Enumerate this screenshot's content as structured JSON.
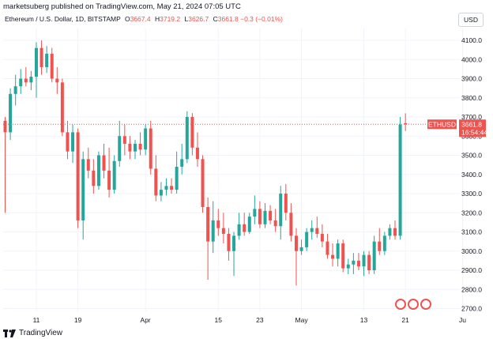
{
  "header": {
    "publisher_line": "marketsuberg published on TradingView.com, May 21, 2024 07:05 UTC",
    "symbol": "Ethereum / U.S. Dollar, 1D, BITSTAMP",
    "ohlc": {
      "o_label": "O",
      "o_value": "3667.4",
      "h_label": "H",
      "h_value": "3719.2",
      "l_label": "L",
      "l_value": "3626.7",
      "c_label": "C",
      "c_value": "3661.8",
      "change": "−0.3 (−0.01%)"
    },
    "currency_button": "USD"
  },
  "footer": {
    "brand": "TradingView"
  },
  "colors": {
    "up": "#26a69a",
    "down": "#ef5350",
    "last_line": "#ef5350",
    "grid": "#f0f3fa"
  },
  "price_label": {
    "symbol": "ETHUSD",
    "price": "3661.8",
    "countdown": "16:54:44"
  },
  "chart_data": {
    "type": "candlestick",
    "title": "Ethereum / U.S. Dollar, 1D, BITSTAMP",
    "ylim": [
      2650,
      4200
    ],
    "y_ticks": [
      "4100.0",
      "4000.0",
      "3900.0",
      "3800.0",
      "3700.0",
      "3600.0",
      "3500.0",
      "3400.0",
      "3300.0",
      "3200.0",
      "3100.0",
      "3000.0",
      "2900.0",
      "2800.0",
      "2700.0"
    ],
    "x_ticks": [
      {
        "label": "11",
        "index": 6
      },
      {
        "label": "19",
        "index": 14
      },
      {
        "label": "Apr",
        "index": 27
      },
      {
        "label": "15",
        "index": 41
      },
      {
        "label": "23",
        "index": 49
      },
      {
        "label": "May",
        "index": 57
      },
      {
        "label": "13",
        "index": 69
      },
      {
        "label": "21",
        "index": 77
      },
      {
        "label": "Ju",
        "index": 88
      }
    ],
    "last_price": 3661.8,
    "candles": [
      {
        "o": 3680,
        "h": 3700,
        "l": 3200,
        "c": 3620
      },
      {
        "o": 3620,
        "h": 3850,
        "l": 3580,
        "c": 3820
      },
      {
        "o": 3820,
        "h": 3920,
        "l": 3760,
        "c": 3860
      },
      {
        "o": 3860,
        "h": 3950,
        "l": 3820,
        "c": 3900
      },
      {
        "o": 3900,
        "h": 3960,
        "l": 3860,
        "c": 3880
      },
      {
        "o": 3880,
        "h": 3940,
        "l": 3840,
        "c": 3910
      },
      {
        "o": 3910,
        "h": 4090,
        "l": 3800,
        "c": 4060
      },
      {
        "o": 4060,
        "h": 4100,
        "l": 3920,
        "c": 3960
      },
      {
        "o": 3960,
        "h": 4070,
        "l": 3930,
        "c": 4030
      },
      {
        "o": 4030,
        "h": 4060,
        "l": 3880,
        "c": 3900
      },
      {
        "o": 3900,
        "h": 3960,
        "l": 3820,
        "c": 3880
      },
      {
        "o": 3880,
        "h": 3900,
        "l": 3600,
        "c": 3620
      },
      {
        "o": 3620,
        "h": 3680,
        "l": 3480,
        "c": 3520
      },
      {
        "o": 3520,
        "h": 3660,
        "l": 3460,
        "c": 3620
      },
      {
        "o": 3620,
        "h": 3640,
        "l": 3120,
        "c": 3160
      },
      {
        "o": 3160,
        "h": 3520,
        "l": 3060,
        "c": 3480
      },
      {
        "o": 3480,
        "h": 3540,
        "l": 3380,
        "c": 3420
      },
      {
        "o": 3420,
        "h": 3480,
        "l": 3300,
        "c": 3340
      },
      {
        "o": 3340,
        "h": 3520,
        "l": 3320,
        "c": 3500
      },
      {
        "o": 3500,
        "h": 3560,
        "l": 3380,
        "c": 3420
      },
      {
        "o": 3420,
        "h": 3540,
        "l": 3280,
        "c": 3320
      },
      {
        "o": 3320,
        "h": 3500,
        "l": 3300,
        "c": 3470
      },
      {
        "o": 3470,
        "h": 3680,
        "l": 3440,
        "c": 3600
      },
      {
        "o": 3600,
        "h": 3660,
        "l": 3500,
        "c": 3560
      },
      {
        "o": 3560,
        "h": 3600,
        "l": 3480,
        "c": 3520
      },
      {
        "o": 3520,
        "h": 3580,
        "l": 3480,
        "c": 3560
      },
      {
        "o": 3560,
        "h": 3620,
        "l": 3500,
        "c": 3530
      },
      {
        "o": 3530,
        "h": 3660,
        "l": 3500,
        "c": 3640
      },
      {
        "o": 3640,
        "h": 3680,
        "l": 3400,
        "c": 3430
      },
      {
        "o": 3430,
        "h": 3500,
        "l": 3260,
        "c": 3290
      },
      {
        "o": 3290,
        "h": 3360,
        "l": 3260,
        "c": 3320
      },
      {
        "o": 3320,
        "h": 3380,
        "l": 3290,
        "c": 3340
      },
      {
        "o": 3340,
        "h": 3380,
        "l": 3300,
        "c": 3320
      },
      {
        "o": 3320,
        "h": 3520,
        "l": 3300,
        "c": 3440
      },
      {
        "o": 3440,
        "h": 3560,
        "l": 3400,
        "c": 3480
      },
      {
        "o": 3480,
        "h": 3730,
        "l": 3460,
        "c": 3700
      },
      {
        "o": 3700,
        "h": 3720,
        "l": 3500,
        "c": 3540
      },
      {
        "o": 3540,
        "h": 3620,
        "l": 3440,
        "c": 3480
      },
      {
        "o": 3480,
        "h": 3500,
        "l": 3200,
        "c": 3230
      },
      {
        "o": 3230,
        "h": 3280,
        "l": 2850,
        "c": 3050
      },
      {
        "o": 3050,
        "h": 3260,
        "l": 2990,
        "c": 3160
      },
      {
        "o": 3160,
        "h": 3220,
        "l": 3080,
        "c": 3120
      },
      {
        "o": 3120,
        "h": 3200,
        "l": 3040,
        "c": 3090
      },
      {
        "o": 3090,
        "h": 3120,
        "l": 2950,
        "c": 3000
      },
      {
        "o": 3000,
        "h": 3100,
        "l": 2870,
        "c": 3080
      },
      {
        "o": 3080,
        "h": 3200,
        "l": 3060,
        "c": 3140
      },
      {
        "o": 3140,
        "h": 3200,
        "l": 3080,
        "c": 3100
      },
      {
        "o": 3100,
        "h": 3200,
        "l": 3090,
        "c": 3180
      },
      {
        "o": 3180,
        "h": 3290,
        "l": 3140,
        "c": 3220
      },
      {
        "o": 3220,
        "h": 3260,
        "l": 3120,
        "c": 3140
      },
      {
        "o": 3140,
        "h": 3250,
        "l": 3120,
        "c": 3210
      },
      {
        "o": 3210,
        "h": 3240,
        "l": 3140,
        "c": 3160
      },
      {
        "o": 3160,
        "h": 3220,
        "l": 3100,
        "c": 3130
      },
      {
        "o": 3130,
        "h": 3340,
        "l": 3060,
        "c": 3300
      },
      {
        "o": 3300,
        "h": 3350,
        "l": 3160,
        "c": 3200
      },
      {
        "o": 3200,
        "h": 3250,
        "l": 3050,
        "c": 3080
      },
      {
        "o": 3080,
        "h": 3120,
        "l": 2820,
        "c": 3000
      },
      {
        "o": 3000,
        "h": 3060,
        "l": 2980,
        "c": 3020
      },
      {
        "o": 3020,
        "h": 3120,
        "l": 3000,
        "c": 3100
      },
      {
        "o": 3100,
        "h": 3160,
        "l": 3060,
        "c": 3120
      },
      {
        "o": 3120,
        "h": 3180,
        "l": 3070,
        "c": 3090
      },
      {
        "o": 3090,
        "h": 3140,
        "l": 3020,
        "c": 3050
      },
      {
        "o": 3050,
        "h": 3090,
        "l": 2960,
        "c": 2980
      },
      {
        "o": 2980,
        "h": 3040,
        "l": 2920,
        "c": 2960
      },
      {
        "o": 2960,
        "h": 3060,
        "l": 2920,
        "c": 3040
      },
      {
        "o": 3040,
        "h": 3060,
        "l": 2890,
        "c": 2910
      },
      {
        "o": 2910,
        "h": 2960,
        "l": 2880,
        "c": 2930
      },
      {
        "o": 2930,
        "h": 2990,
        "l": 2880,
        "c": 2950
      },
      {
        "o": 2950,
        "h": 2990,
        "l": 2900,
        "c": 2920
      },
      {
        "o": 2920,
        "h": 3000,
        "l": 2870,
        "c": 2980
      },
      {
        "o": 2980,
        "h": 3000,
        "l": 2880,
        "c": 2900
      },
      {
        "o": 2900,
        "h": 3080,
        "l": 2880,
        "c": 3050
      },
      {
        "o": 3050,
        "h": 3120,
        "l": 2980,
        "c": 3000
      },
      {
        "o": 3000,
        "h": 3100,
        "l": 2980,
        "c": 3080
      },
      {
        "o": 3080,
        "h": 3140,
        "l": 3060,
        "c": 3120
      },
      {
        "o": 3120,
        "h": 3160,
        "l": 3060,
        "c": 3080
      },
      {
        "o": 3080,
        "h": 3700,
        "l": 3060,
        "c": 3660
      },
      {
        "o": 3667.4,
        "h": 3719.2,
        "l": 3626.7,
        "c": 3661.8
      }
    ]
  }
}
